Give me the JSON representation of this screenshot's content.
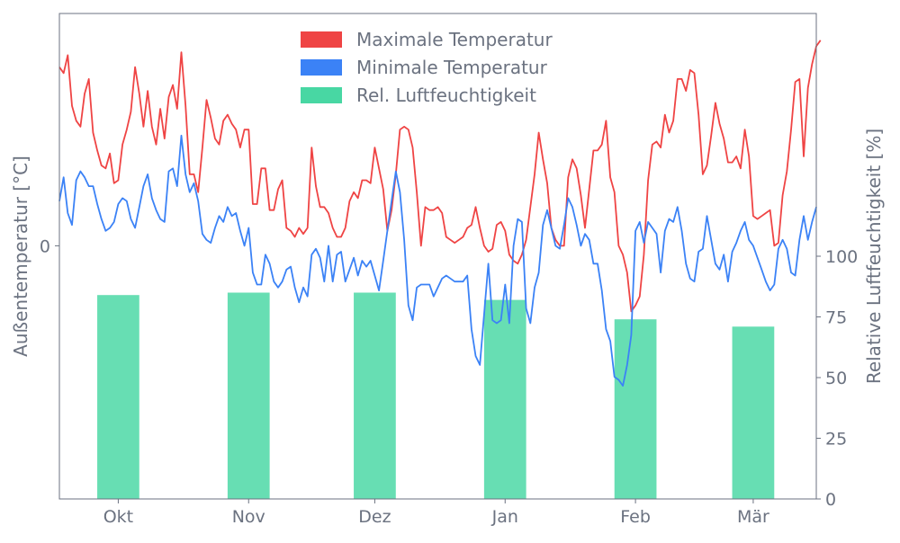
{
  "chart_data": {
    "type": "line+bar",
    "ylabel_left": "Außentemperatur [°C]",
    "ylabel_right": "Relative Luftfeuchtigkeit [%]",
    "left_ticks": [
      {
        "value": 0,
        "label": "0"
      }
    ],
    "left_ylim": [
      -8.5,
      7.8
    ],
    "right_ticks": [
      0,
      25,
      50,
      75,
      100
    ],
    "right_ylim": [
      0,
      200
    ],
    "x_range": [
      0,
      180
    ],
    "x_ticks": [
      {
        "x": 14,
        "label": "Okt"
      },
      {
        "x": 45,
        "label": "Nov"
      },
      {
        "x": 75,
        "label": "Dez"
      },
      {
        "x": 106,
        "label": "Jan"
      },
      {
        "x": 137,
        "label": "Feb"
      },
      {
        "x": 165,
        "label": "Mär"
      }
    ],
    "legend_position": "top-center",
    "grid": false,
    "colors": {
      "max_temp": "#ef4444",
      "min_temp": "#3b82f6",
      "humidity": "#34d399",
      "axis": "#6b7280",
      "text": "#6b7280"
    },
    "series": [
      {
        "name": "Maximale Temperatur",
        "kind": "line",
        "axis": "left",
        "x_start": 0,
        "x_step": 1,
        "values": [
          6.0,
          5.8,
          6.4,
          4.7,
          4.2,
          4.0,
          5.1,
          5.6,
          3.8,
          3.2,
          2.7,
          2.6,
          3.1,
          2.1,
          2.2,
          3.4,
          3.9,
          4.5,
          6.0,
          5.1,
          4.0,
          5.2,
          4.0,
          3.4,
          4.6,
          3.6,
          5.0,
          5.4,
          4.6,
          6.5,
          4.7,
          2.4,
          2.4,
          1.8,
          3.3,
          4.9,
          4.3,
          3.6,
          3.4,
          4.2,
          4.4,
          4.1,
          3.9,
          3.3,
          3.9,
          3.9,
          1.4,
          1.4,
          2.6,
          2.6,
          1.2,
          1.2,
          1.9,
          2.2,
          0.6,
          0.5,
          0.3,
          0.6,
          0.4,
          0.6,
          3.3,
          2.0,
          1.3,
          1.3,
          1.1,
          0.6,
          0.3,
          0.3,
          0.6,
          1.5,
          1.8,
          1.6,
          2.2,
          2.2,
          2.1,
          3.3,
          2.6,
          1.9,
          0.5,
          1.2,
          2.4,
          3.9,
          4.0,
          3.9,
          3.3,
          1.8,
          0.0,
          1.3,
          1.2,
          1.2,
          1.3,
          1.1,
          0.3,
          0.2,
          0.1,
          0.2,
          0.3,
          0.6,
          0.7,
          1.3,
          0.6,
          0.0,
          -0.2,
          -0.1,
          0.7,
          0.8,
          0.5,
          -0.3,
          -0.5,
          -0.6,
          -0.3,
          0.2,
          1.3,
          2.4,
          3.8,
          2.9,
          2.1,
          0.6,
          0.2,
          0.0,
          0.0,
          2.3,
          2.9,
          2.6,
          1.7,
          0.6,
          1.9,
          3.2,
          3.2,
          3.4,
          4.2,
          2.3,
          1.8,
          0.0,
          -0.3,
          -0.9,
          -2.2,
          -2.0,
          -1.7,
          -0.3,
          2.2,
          3.4,
          3.5,
          3.3,
          4.4,
          3.8,
          4.2,
          5.6,
          5.6,
          5.2,
          5.9,
          5.8,
          4.4,
          2.4,
          2.7,
          3.7,
          4.8,
          4.1,
          3.6,
          2.8,
          2.8,
          3.0,
          2.6,
          3.9,
          3.0,
          1.0,
          0.9,
          1.0,
          1.1,
          1.2,
          0.0,
          0.1,
          1.7,
          2.5,
          3.9,
          5.5,
          5.6,
          3.0,
          5.3,
          6.1,
          6.7,
          6.9
        ]
      },
      {
        "name": "Minimale Temperatur",
        "kind": "line",
        "axis": "left",
        "x_start": 0,
        "x_step": 1,
        "values": [
          1.5,
          2.3,
          1.1,
          0.7,
          2.2,
          2.5,
          2.3,
          2.0,
          2.0,
          1.4,
          0.9,
          0.5,
          0.6,
          0.8,
          1.4,
          1.6,
          1.5,
          0.9,
          0.6,
          1.3,
          2.0,
          2.4,
          1.6,
          1.2,
          0.9,
          0.8,
          2.5,
          2.6,
          2.0,
          3.7,
          2.4,
          1.8,
          2.1,
          1.5,
          0.4,
          0.2,
          0.1,
          0.6,
          1.0,
          0.8,
          1.3,
          1.0,
          1.1,
          0.5,
          0.0,
          0.6,
          -0.9,
          -1.3,
          -1.3,
          -0.3,
          -0.6,
          -1.2,
          -1.4,
          -1.2,
          -0.8,
          -0.7,
          -1.4,
          -1.9,
          -1.4,
          -1.7,
          -0.3,
          -0.1,
          -0.4,
          -1.2,
          0.0,
          -1.2,
          -0.3,
          -0.2,
          -1.2,
          -0.8,
          -0.4,
          -1.0,
          -0.5,
          -0.7,
          -0.5,
          -1.0,
          -1.5,
          -0.5,
          0.5,
          1.5,
          2.5,
          1.8,
          0.2,
          -2.0,
          -2.5,
          -1.4,
          -1.3,
          -1.3,
          -1.3,
          -1.7,
          -1.4,
          -1.1,
          -1.0,
          -1.1,
          -1.2,
          -1.2,
          -1.2,
          -1.0,
          -2.8,
          -3.7,
          -4.0,
          -2.3,
          -0.6,
          -2.5,
          -2.6,
          -2.5,
          -1.3,
          -2.6,
          0.0,
          0.9,
          0.8,
          -2.1,
          -2.6,
          -1.4,
          -0.9,
          0.7,
          1.2,
          0.6,
          0.0,
          -0.1,
          0.7,
          1.6,
          1.3,
          0.7,
          0.0,
          0.4,
          0.2,
          -0.6,
          -0.6,
          -1.5,
          -2.8,
          -3.2,
          -4.4,
          -4.5,
          -4.7,
          -4.0,
          -3.0,
          0.5,
          0.8,
          0.1,
          0.8,
          0.6,
          0.4,
          -0.9,
          0.5,
          0.9,
          0.8,
          1.3,
          0.5,
          -0.6,
          -1.1,
          -1.2,
          -0.2,
          -0.1,
          1.0,
          0.2,
          -0.6,
          -0.8,
          -0.3,
          -1.2,
          -0.2,
          0.1,
          0.5,
          0.8,
          0.2,
          0.0,
          -0.4,
          -0.8,
          -1.2,
          -1.5,
          -1.3,
          -0.1,
          0.2,
          -0.1,
          -0.9,
          -1.0,
          0.2,
          1.0,
          0.2,
          0.8,
          1.3
        ]
      },
      {
        "name": "Rel. Luftfeuchtigkeit",
        "kind": "bar",
        "axis": "right",
        "bar_width": 10,
        "x": [
          14,
          45,
          75,
          106,
          137,
          165
        ],
        "values": [
          84,
          85,
          85,
          82,
          74,
          71
        ]
      }
    ]
  }
}
